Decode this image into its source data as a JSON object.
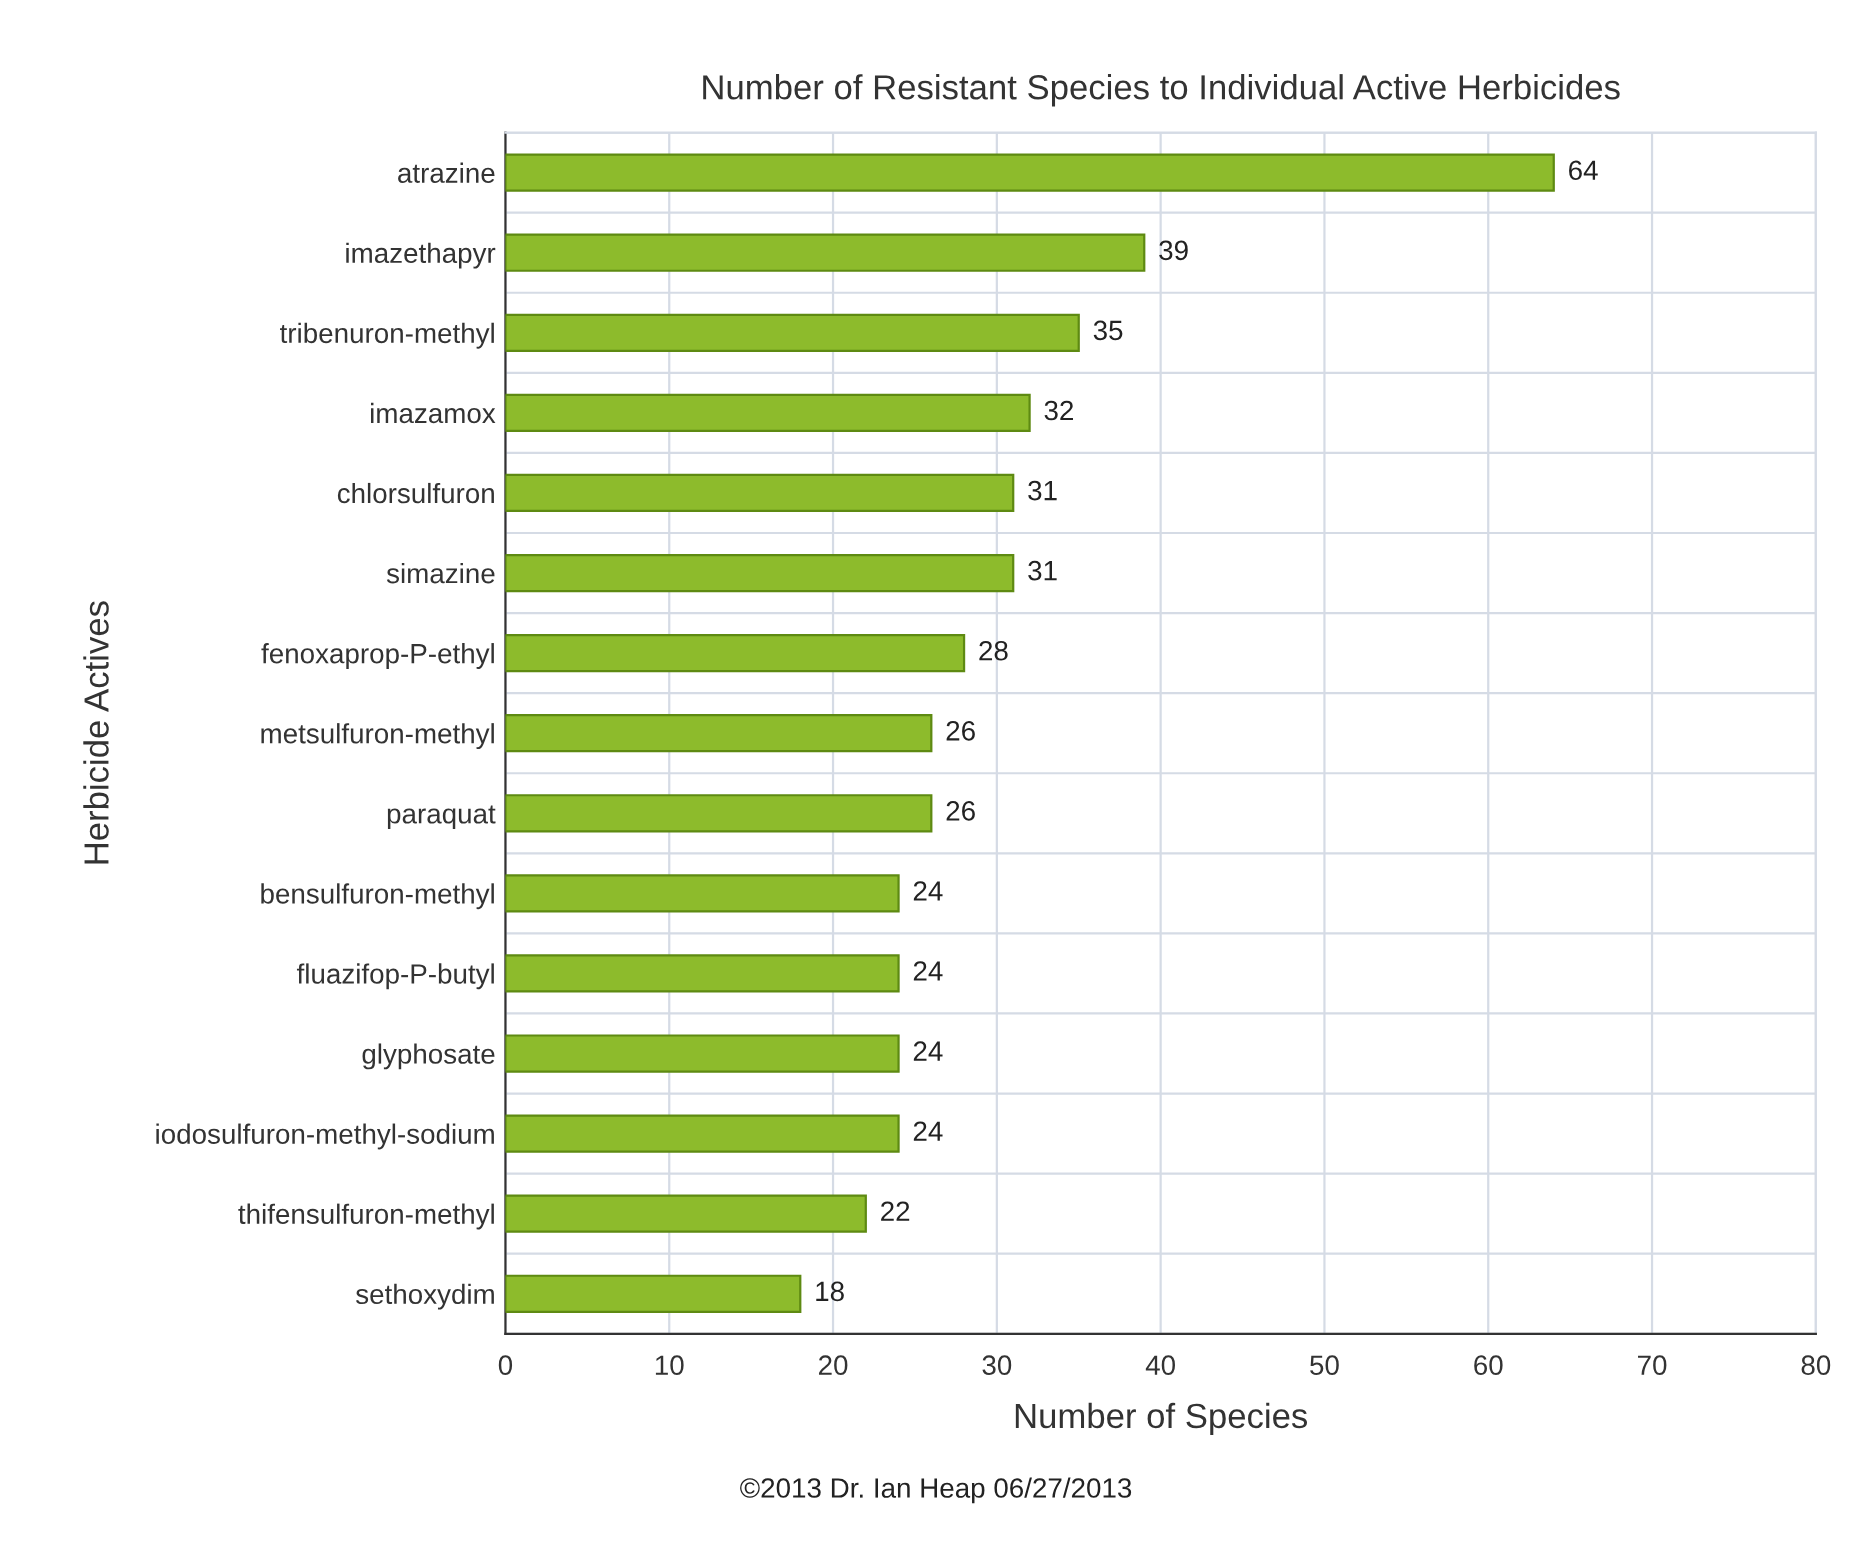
{
  "chart_data": {
    "type": "bar",
    "orientation": "horizontal",
    "title": "Number of Resistant Species to Individual Active Herbicides",
    "xlabel": "Number of Species",
    "ylabel": "Herbicide Actives",
    "categories": [
      "atrazine",
      "imazethapyr",
      "tribenuron-methyl",
      "imazamox",
      "chlorsulfuron",
      "simazine",
      "fenoxaprop-P-ethyl",
      "metsulfuron-methyl",
      "paraquat",
      "bensulfuron-methyl",
      "fluazifop-P-butyl",
      "glyphosate",
      "iodosulfuron-methyl-sodium",
      "thifensulfuron-methyl",
      "sethoxydim"
    ],
    "values": [
      64,
      39,
      35,
      32,
      31,
      31,
      28,
      26,
      26,
      24,
      24,
      24,
      24,
      22,
      18
    ],
    "color": "#8dbb2c",
    "xlim": [
      0,
      80
    ],
    "xticks": [
      0,
      10,
      20,
      30,
      40,
      50,
      60,
      70,
      80
    ],
    "grid": true,
    "data_labels": true,
    "annotations": [
      "©2013 Dr. Ian Heap 06/27/2013"
    ]
  }
}
